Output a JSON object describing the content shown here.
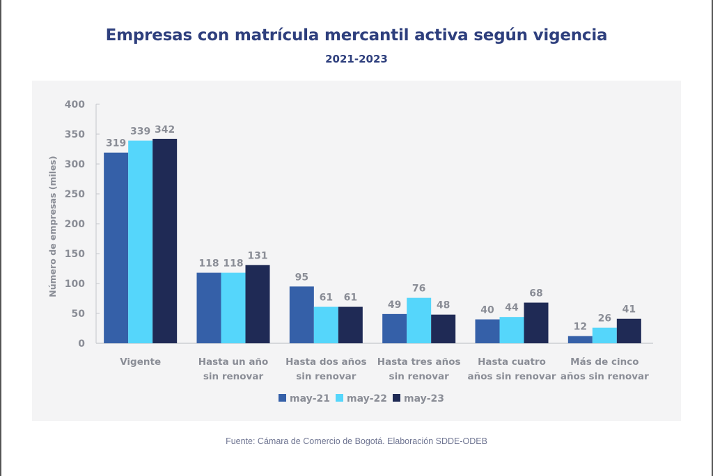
{
  "chart_data": {
    "type": "bar",
    "title": "Empresas con matrícula mercantil activa según vigencia",
    "subtitle": "2021-2023",
    "xlabel": "",
    "ylabel": "Número de empresas (miles)",
    "ylim": [
      0,
      400
    ],
    "yticks": [
      0,
      50,
      100,
      150,
      200,
      250,
      300,
      350,
      400
    ],
    "grid": false,
    "legend_position": "bottom",
    "categories": [
      [
        "Vigente"
      ],
      [
        "Hasta un año",
        "sin renovar"
      ],
      [
        "Hasta dos años",
        "sin renovar"
      ],
      [
        "Hasta tres años",
        "sin renovar"
      ],
      [
        "Hasta cuatro",
        "años sin renovar"
      ],
      [
        "Más de cinco",
        "años sin renovar"
      ]
    ],
    "series": [
      {
        "name": "may-21",
        "color": "#3560a8",
        "values": [
          319,
          118,
          95,
          49,
          40,
          12
        ]
      },
      {
        "name": "may-22",
        "color": "#55d6fb",
        "values": [
          339,
          118,
          61,
          76,
          44,
          26
        ]
      },
      {
        "name": "may-23",
        "color": "#1f2a55",
        "values": [
          342,
          131,
          61,
          48,
          68,
          41
        ]
      }
    ],
    "source": "Fuente: Cámara de Comercio de Bogotá. Elaboración SDDE-ODEB"
  },
  "colors": {
    "title": "#2e3f7d",
    "axis_text": "#8a8d96",
    "panel_bg": "#f4f4f5"
  }
}
